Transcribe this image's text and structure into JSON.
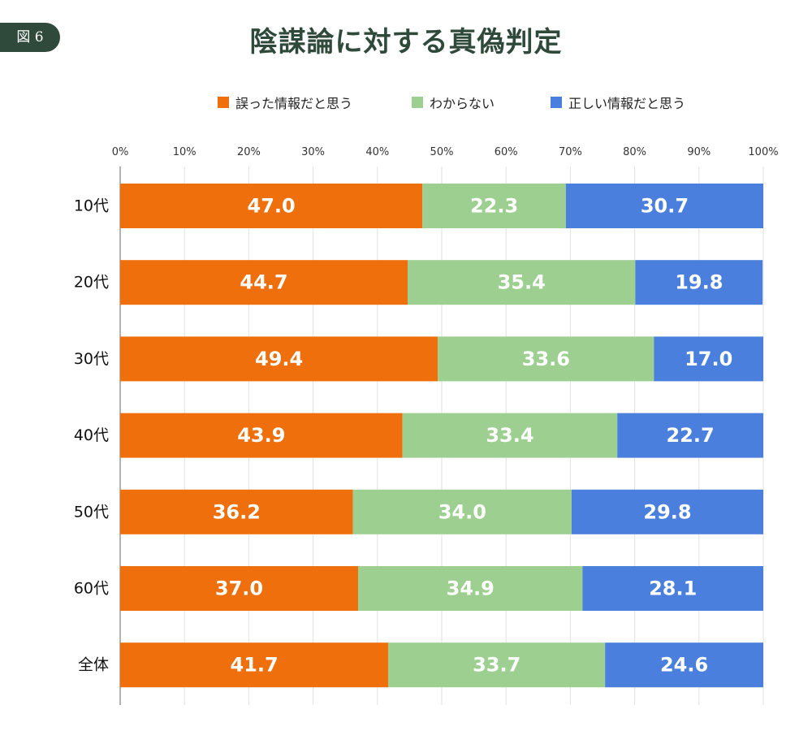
{
  "badge": "図 6",
  "chart_data": {
    "type": "bar",
    "orientation": "horizontal",
    "stacked": true,
    "percent": true,
    "title": "陰謀論に対する真偽判定",
    "categories": [
      "10代",
      "20代",
      "30代",
      "40代",
      "50代",
      "60代",
      "全体"
    ],
    "series": [
      {
        "name": "誤った情報だと思う",
        "color": "#ee6f0b",
        "values": [
          47.0,
          44.7,
          49.4,
          43.9,
          36.2,
          37.0,
          41.7
        ]
      },
      {
        "name": "わからない",
        "color": "#9dd090",
        "values": [
          22.3,
          35.4,
          33.6,
          33.4,
          34.0,
          34.9,
          33.7
        ]
      },
      {
        "name": "正しい情報だと思う",
        "color": "#4a7fde",
        "values": [
          30.7,
          19.8,
          17.0,
          22.7,
          29.8,
          28.1,
          24.6
        ]
      }
    ],
    "xlim": [
      0,
      100
    ],
    "xticks": [
      "0%",
      "10%",
      "20%",
      "30%",
      "40%",
      "50%",
      "60%",
      "70%",
      "80%",
      "90%",
      "100%"
    ],
    "grid": true,
    "legend_position": "top"
  }
}
